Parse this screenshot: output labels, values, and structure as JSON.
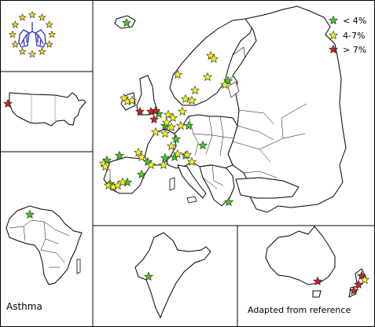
{
  "legend": {
    "items": [
      {
        "label": "< 4%",
        "color": "#44cc22"
      },
      {
        "label": "4-7%",
        "color": "#f5f020"
      },
      {
        "label": "> 7%",
        "color": "#cc2222"
      }
    ]
  },
  "panels": {
    "africa_label": "Asthma",
    "australia_label": "Adapted from reference"
  },
  "colors": {
    "low": "#44cc22",
    "mid": "#f5f020",
    "high": "#cc2222",
    "emblem_blue": "#3333cc",
    "emblem_star": "#f0e020"
  },
  "markers": {
    "usa": [
      {
        "level": "high"
      }
    ],
    "europe_count_low": 17,
    "europe_count_mid": 33,
    "europe_count_high": 5,
    "africa": [
      {
        "level": "low"
      }
    ],
    "india": [
      {
        "level": "low"
      }
    ],
    "australia_nz": [
      {
        "level": "high"
      },
      {
        "level": "high"
      },
      {
        "level": "high"
      },
      {
        "level": "high"
      },
      {
        "level": "mid"
      }
    ]
  }
}
